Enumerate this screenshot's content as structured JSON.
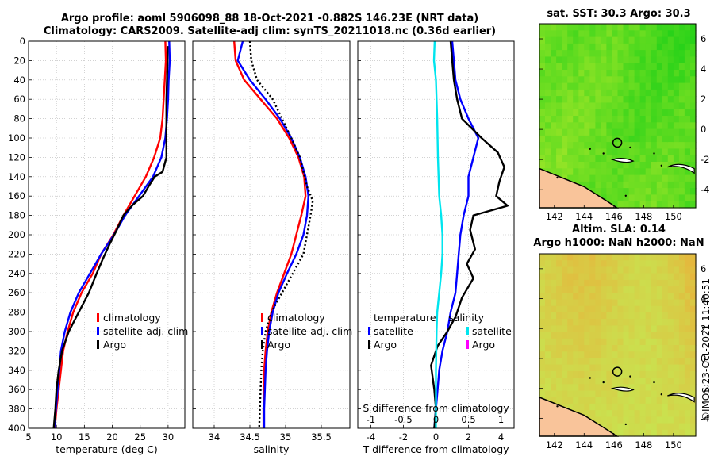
{
  "header": {
    "title_line1": "Argo profile: aoml 5906098_88 18-Oct-2021 -0.882S 146.23E (NRT data)",
    "title_line2": "Climatology: CARS2009. Satellite-adj clim: synTS_20211018.nc (0.36d earlier)"
  },
  "stamp": "©IMOS 23-Oct-2021 11:40:51",
  "colors": {
    "climatology": "#ff0000",
    "satellite": "#0000ff",
    "argo": "#000000",
    "salinity_satellite": "#00e5ee",
    "salinity_argo": "#ff00ff",
    "land": "#f9c49a"
  },
  "chart_data": [
    {
      "id": "temperature",
      "type": "line",
      "xlabel": "temperature (deg C)",
      "ylabel": "",
      "xlim": [
        5,
        33
      ],
      "ylim": [
        400,
        0
      ],
      "xticks": [
        5,
        10,
        15,
        20,
        25,
        30
      ],
      "yticks": [
        0,
        20,
        40,
        60,
        80,
        100,
        120,
        140,
        160,
        180,
        200,
        220,
        240,
        260,
        280,
        300,
        320,
        340,
        360,
        380,
        400
      ],
      "grid": true,
      "legend": [
        "climatology",
        "satellite-adj. clim",
        "Argo"
      ],
      "series": [
        {
          "name": "climatology",
          "color": "#ff0000",
          "points": [
            [
              29.5,
              0
            ],
            [
              29.6,
              20
            ],
            [
              29.4,
              40
            ],
            [
              29.2,
              60
            ],
            [
              29.0,
              80
            ],
            [
              28.6,
              100
            ],
            [
              27.5,
              120
            ],
            [
              26.0,
              140
            ],
            [
              24.0,
              160
            ],
            [
              22.0,
              180
            ],
            [
              20.2,
              200
            ],
            [
              18.0,
              220
            ],
            [
              16.5,
              240
            ],
            [
              14.5,
              260
            ],
            [
              13.0,
              280
            ],
            [
              12.0,
              300
            ],
            [
              11.2,
              320
            ],
            [
              10.8,
              340
            ],
            [
              10.4,
              360
            ],
            [
              10.0,
              380
            ],
            [
              9.7,
              400
            ]
          ]
        },
        {
          "name": "satellite-adj. clim",
          "color": "#0000ff",
          "points": [
            [
              30.2,
              0
            ],
            [
              30.3,
              20
            ],
            [
              30.1,
              40
            ],
            [
              30.0,
              60
            ],
            [
              29.8,
              80
            ],
            [
              29.5,
              100
            ],
            [
              28.8,
              120
            ],
            [
              27.3,
              140
            ],
            [
              24.8,
              160
            ],
            [
              22.3,
              180
            ],
            [
              20.3,
              200
            ],
            [
              18.0,
              220
            ],
            [
              16.0,
              240
            ],
            [
              14.0,
              260
            ],
            [
              12.5,
              280
            ],
            [
              11.5,
              300
            ],
            [
              10.8,
              320
            ],
            [
              10.5,
              340
            ],
            [
              10.2,
              360
            ],
            [
              9.9,
              380
            ],
            [
              9.6,
              400
            ]
          ]
        },
        {
          "name": "Argo",
          "color": "#000000",
          "points": [
            [
              29.9,
              5
            ],
            [
              29.9,
              20
            ],
            [
              29.8,
              40
            ],
            [
              29.7,
              60
            ],
            [
              29.7,
              80
            ],
            [
              29.7,
              100
            ],
            [
              29.7,
              120
            ],
            [
              29.0,
              135
            ],
            [
              27.6,
              140
            ],
            [
              26.5,
              150
            ],
            [
              25.5,
              160
            ],
            [
              23.5,
              170
            ],
            [
              22.0,
              180
            ],
            [
              20.8,
              195
            ],
            [
              19.5,
              210
            ],
            [
              18.3,
              225
            ],
            [
              17.2,
              240
            ],
            [
              15.8,
              260
            ],
            [
              14.0,
              280
            ],
            [
              12.2,
              300
            ],
            [
              11.0,
              320
            ],
            [
              10.4,
              340
            ],
            [
              10.0,
              360
            ],
            [
              9.8,
              380
            ],
            [
              9.5,
              400
            ]
          ]
        }
      ]
    },
    {
      "id": "salinity",
      "type": "line",
      "xlabel": "salinity",
      "ylabel": "",
      "xlim": [
        33.7,
        35.9
      ],
      "ylim": [
        400,
        0
      ],
      "xticks": [
        34,
        34.5,
        35,
        35.5
      ],
      "grid": true,
      "legend": [
        "climatology",
        "satellite-adj. clim",
        "Argo"
      ],
      "series": [
        {
          "name": "climatology",
          "color": "#ff0000",
          "points": [
            [
              34.28,
              0
            ],
            [
              34.3,
              20
            ],
            [
              34.42,
              40
            ],
            [
              34.65,
              60
            ],
            [
              34.88,
              80
            ],
            [
              35.05,
              100
            ],
            [
              35.18,
              120
            ],
            [
              35.26,
              140
            ],
            [
              35.28,
              160
            ],
            [
              35.22,
              180
            ],
            [
              35.15,
              200
            ],
            [
              35.08,
              220
            ],
            [
              34.98,
              240
            ],
            [
              34.88,
              260
            ],
            [
              34.8,
              280
            ],
            [
              34.75,
              300
            ],
            [
              34.72,
              320
            ],
            [
              34.7,
              340
            ],
            [
              34.7,
              360
            ],
            [
              34.69,
              380
            ],
            [
              34.69,
              400
            ]
          ]
        },
        {
          "name": "satellite-adj. clim",
          "color": "#0000ff",
          "points": [
            [
              34.4,
              0
            ],
            [
              34.33,
              20
            ],
            [
              34.5,
              40
            ],
            [
              34.72,
              60
            ],
            [
              34.92,
              80
            ],
            [
              35.08,
              100
            ],
            [
              35.2,
              120
            ],
            [
              35.28,
              140
            ],
            [
              35.32,
              160
            ],
            [
              35.3,
              180
            ],
            [
              35.25,
              200
            ],
            [
              35.15,
              220
            ],
            [
              35.02,
              240
            ],
            [
              34.9,
              260
            ],
            [
              34.82,
              280
            ],
            [
              34.77,
              300
            ],
            [
              34.74,
              320
            ],
            [
              34.72,
              340
            ],
            [
              34.71,
              360
            ],
            [
              34.7,
              380
            ],
            [
              34.7,
              400
            ]
          ]
        },
        {
          "name": "Argo",
          "color": "#000000",
          "points": [
            [
              34.5,
              0
            ],
            [
              34.52,
              20
            ],
            [
              34.6,
              40
            ],
            [
              34.82,
              60
            ],
            [
              34.95,
              80
            ],
            [
              35.08,
              100
            ],
            [
              35.2,
              120
            ],
            [
              35.25,
              135
            ],
            [
              35.3,
              150
            ],
            [
              35.38,
              165
            ],
            [
              35.35,
              180
            ],
            [
              35.3,
              200
            ],
            [
              35.25,
              220
            ],
            [
              35.1,
              240
            ],
            [
              34.95,
              260
            ],
            [
              34.8,
              280
            ],
            [
              34.72,
              300
            ],
            [
              34.68,
              320
            ],
            [
              34.66,
              340
            ],
            [
              34.65,
              360
            ],
            [
              34.64,
              380
            ],
            [
              34.63,
              400
            ]
          ]
        }
      ]
    },
    {
      "id": "difference",
      "type": "line",
      "xlabel": "T difference from climatology",
      "top_xlabel": "S difference from climatology",
      "xlim": [
        -4.8,
        4.8
      ],
      "ylim": [
        400,
        0
      ],
      "xticks": [
        -4,
        -2,
        0,
        2,
        4
      ],
      "top_xticks": [
        -1,
        -0.5,
        0,
        0.5,
        1
      ],
      "grid": true,
      "legend_left_title": "temperature",
      "legend_right_title": "salinity",
      "legend_left": [
        "satellite",
        "Argo"
      ],
      "legend_right": [
        "satellite",
        "Argo"
      ],
      "series": [
        {
          "name": "temperature satellite",
          "color": "#0000ff",
          "points": [
            [
              1.0,
              0
            ],
            [
              1.1,
              20
            ],
            [
              1.2,
              40
            ],
            [
              1.5,
              60
            ],
            [
              2.0,
              80
            ],
            [
              2.6,
              100
            ],
            [
              2.3,
              120
            ],
            [
              2.0,
              140
            ],
            [
              2.0,
              160
            ],
            [
              1.7,
              180
            ],
            [
              1.5,
              200
            ],
            [
              1.4,
              220
            ],
            [
              1.3,
              240
            ],
            [
              1.2,
              260
            ],
            [
              0.9,
              280
            ],
            [
              0.7,
              300
            ],
            [
              0.4,
              320
            ],
            [
              0.2,
              340
            ],
            [
              0.1,
              360
            ],
            [
              0.0,
              380
            ],
            [
              -0.1,
              400
            ]
          ]
        },
        {
          "name": "temperature Argo",
          "color": "#000000",
          "points": [
            [
              0.9,
              0
            ],
            [
              1.0,
              20
            ],
            [
              1.1,
              40
            ],
            [
              1.3,
              60
            ],
            [
              1.6,
              80
            ],
            [
              2.8,
              100
            ],
            [
              3.8,
              115
            ],
            [
              4.2,
              130
            ],
            [
              3.9,
              145
            ],
            [
              3.7,
              160
            ],
            [
              4.4,
              170
            ],
            [
              2.3,
              180
            ],
            [
              2.1,
              195
            ],
            [
              2.4,
              215
            ],
            [
              1.9,
              230
            ],
            [
              2.3,
              245
            ],
            [
              1.6,
              265
            ],
            [
              1.2,
              285
            ],
            [
              0.7,
              300
            ],
            [
              0.1,
              315
            ],
            [
              -0.3,
              335
            ],
            [
              -0.1,
              360
            ],
            [
              0.0,
              380
            ],
            [
              -0.1,
              400
            ]
          ]
        },
        {
          "name": "salinity satellite",
          "color": "#00e5ee",
          "scale": 4,
          "points": [
            [
              -0.02,
              0
            ],
            [
              -0.03,
              20
            ],
            [
              0.0,
              40
            ],
            [
              0.02,
              80
            ],
            [
              0.03,
              120
            ],
            [
              0.05,
              160
            ],
            [
              0.08,
              180
            ],
            [
              0.1,
              200
            ],
            [
              0.1,
              220
            ],
            [
              0.08,
              240
            ],
            [
              0.05,
              260
            ],
            [
              0.02,
              280
            ],
            [
              0.01,
              300
            ],
            [
              0.0,
              340
            ],
            [
              0.0,
              380
            ],
            [
              0.0,
              400
            ]
          ]
        }
      ]
    }
  ],
  "maps": [
    {
      "id": "sst_map",
      "title": "sat. SST: 30.3 Argo: 30.3",
      "title2": "",
      "xticks": [
        142,
        144,
        146,
        148,
        150
      ],
      "yticks": [
        6,
        4,
        2,
        0,
        -2,
        -4
      ],
      "xlim": [
        141,
        151.5
      ],
      "ylim": [
        -5.2,
        7
      ],
      "marker": {
        "lon": 146.23,
        "lat": -0.882
      }
    },
    {
      "id": "sla_map",
      "title": "Altim. SLA: 0.14",
      "title2": "Argo h1000: NaN h2000: NaN",
      "xticks": [
        142,
        144,
        146,
        148,
        150
      ],
      "yticks": [
        6,
        4,
        2,
        0,
        -2,
        -4
      ],
      "xlim": [
        141,
        151.5
      ],
      "ylim": [
        -5.2,
        7
      ],
      "marker": {
        "lon": 146.23,
        "lat": -0.882
      }
    }
  ]
}
